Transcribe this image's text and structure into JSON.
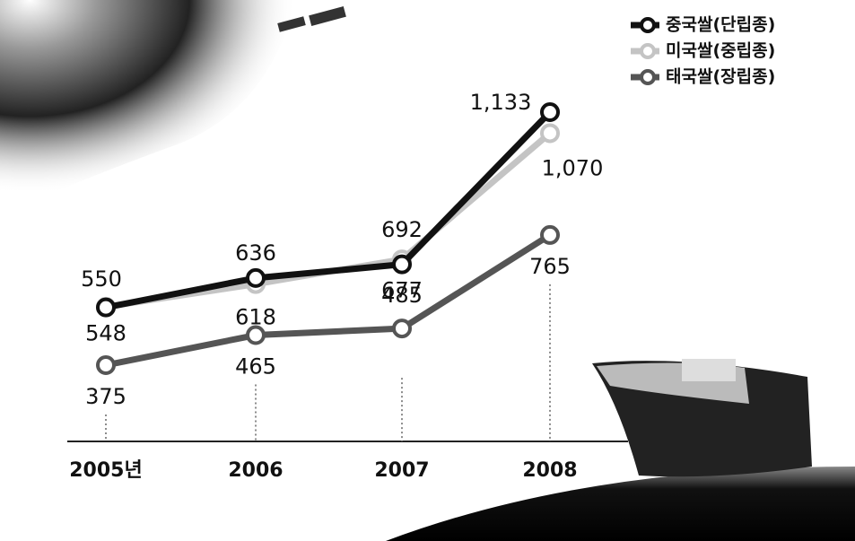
{
  "chart_data": {
    "type": "line",
    "categories": [
      "2005년",
      "2006",
      "2007",
      "2008"
    ],
    "series": [
      {
        "name": "중국쌀(단립종)",
        "color": "#111111",
        "values": [
          548,
          636,
          677,
          1133
        ],
        "value_labels": [
          "548",
          "636",
          "677",
          "1,133"
        ]
      },
      {
        "name": "미국쌀(중립종)",
        "color": "#c4c4c4",
        "values": [
          550,
          618,
          692,
          1070
        ],
        "value_labels": [
          "550",
          "618",
          "692",
          "1,070"
        ]
      },
      {
        "name": "태국쌀(장립종)",
        "color": "#555555",
        "values": [
          375,
          465,
          485,
          765
        ],
        "value_labels": [
          "375",
          "465",
          "485",
          "765"
        ]
      }
    ]
  }
}
